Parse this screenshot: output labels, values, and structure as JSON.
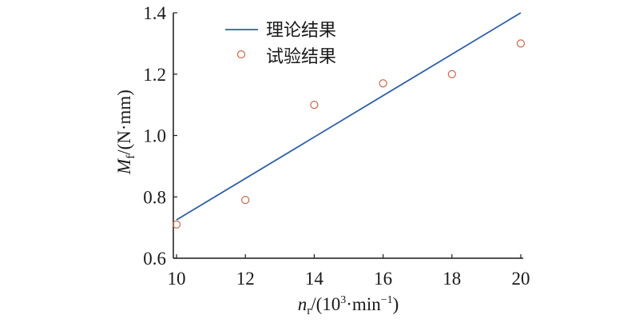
{
  "chart_data": {
    "type": "line",
    "xlabel": {
      "main": "n",
      "sub": "r",
      "unit_prefix": "/(10",
      "sup": "3",
      "unit_mid": "·min",
      "sup2": "−1",
      "unit_suffix": ")"
    },
    "ylabel": {
      "main": "M",
      "sub": "f",
      "unit": "/(N·mm)"
    },
    "xlim": [
      10,
      20
    ],
    "ylim": [
      0.6,
      1.4
    ],
    "xticks": [
      "10",
      "12",
      "14",
      "16",
      "18",
      "20"
    ],
    "yticks": [
      "0.6",
      "0.8",
      "1.0",
      "1.2",
      "1.4"
    ],
    "grid": false,
    "legend_placement": "top-left",
    "series": [
      {
        "name": "理论结果",
        "kind": "line",
        "color": "#2e5fa8",
        "x": [
          10,
          20
        ],
        "y": [
          0.725,
          1.4
        ]
      },
      {
        "name": "试验结果",
        "kind": "scatter",
        "marker": "open-circle",
        "color": "#c8684a",
        "x": [
          10,
          12,
          14,
          16,
          18,
          20
        ],
        "y": [
          0.71,
          0.79,
          1.1,
          1.17,
          1.2,
          1.3
        ]
      }
    ]
  }
}
